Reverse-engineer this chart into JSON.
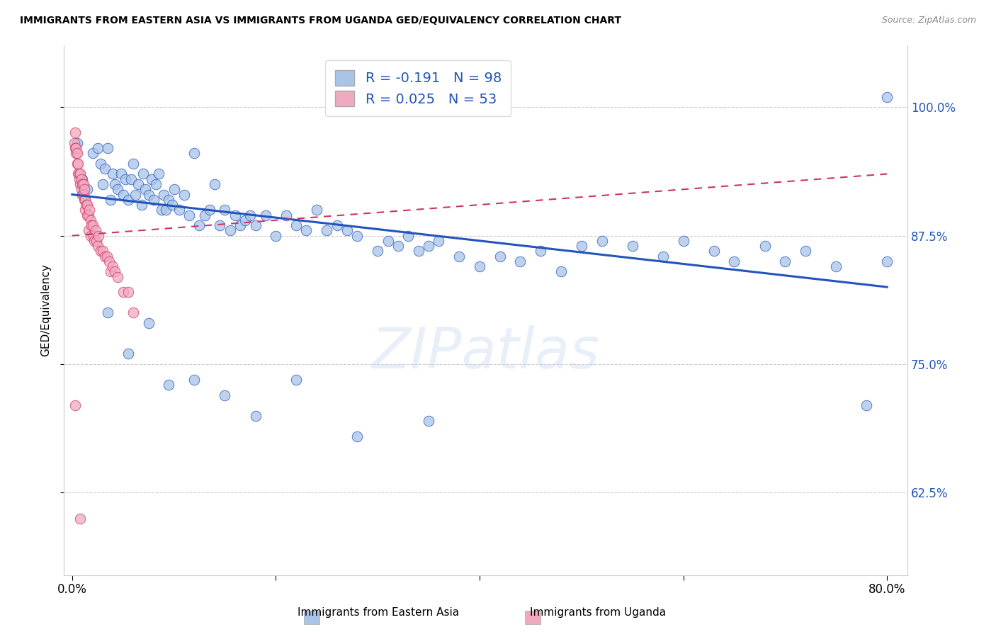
{
  "title": "IMMIGRANTS FROM EASTERN ASIA VS IMMIGRANTS FROM UGANDA GED/EQUIVALENCY CORRELATION CHART",
  "source": "Source: ZipAtlas.com",
  "xlabel_blue": "Immigrants from Eastern Asia",
  "xlabel_pink": "Immigrants from Uganda",
  "ylabel": "GED/Equivalency",
  "r_blue": -0.191,
  "n_blue": 98,
  "r_pink": 0.025,
  "n_pink": 53,
  "y_ticks": [
    0.625,
    0.75,
    0.875,
    1.0
  ],
  "y_tick_labels": [
    "62.5%",
    "75.0%",
    "87.5%",
    "100.0%"
  ],
  "xlim": [
    -0.008,
    0.82
  ],
  "ylim": [
    0.545,
    1.06
  ],
  "color_blue": "#aac4e8",
  "color_pink": "#f0aac0",
  "line_color_blue": "#2255bb",
  "line_color_pink": "#cc3366",
  "watermark": "ZIPatlas",
  "blue_scatter_x": [
    0.005,
    0.01,
    0.015,
    0.02,
    0.025,
    0.028,
    0.03,
    0.032,
    0.035,
    0.038,
    0.04,
    0.042,
    0.045,
    0.048,
    0.05,
    0.052,
    0.055,
    0.058,
    0.06,
    0.062,
    0.065,
    0.068,
    0.07,
    0.072,
    0.075,
    0.078,
    0.08,
    0.082,
    0.085,
    0.088,
    0.09,
    0.092,
    0.095,
    0.098,
    0.1,
    0.105,
    0.11,
    0.115,
    0.12,
    0.125,
    0.13,
    0.135,
    0.14,
    0.145,
    0.15,
    0.155,
    0.16,
    0.165,
    0.17,
    0.175,
    0.18,
    0.19,
    0.2,
    0.21,
    0.22,
    0.23,
    0.24,
    0.25,
    0.26,
    0.27,
    0.28,
    0.3,
    0.31,
    0.32,
    0.33,
    0.34,
    0.35,
    0.36,
    0.38,
    0.4,
    0.42,
    0.44,
    0.46,
    0.48,
    0.5,
    0.52,
    0.55,
    0.58,
    0.6,
    0.63,
    0.65,
    0.68,
    0.7,
    0.72,
    0.75,
    0.78,
    0.8,
    0.035,
    0.055,
    0.075,
    0.095,
    0.12,
    0.15,
    0.18,
    0.22,
    0.28,
    0.35,
    0.8
  ],
  "blue_scatter_y": [
    0.965,
    0.93,
    0.92,
    0.955,
    0.96,
    0.945,
    0.925,
    0.94,
    0.96,
    0.91,
    0.935,
    0.925,
    0.92,
    0.935,
    0.915,
    0.93,
    0.91,
    0.93,
    0.945,
    0.915,
    0.925,
    0.905,
    0.935,
    0.92,
    0.915,
    0.93,
    0.91,
    0.925,
    0.935,
    0.9,
    0.915,
    0.9,
    0.91,
    0.905,
    0.92,
    0.9,
    0.915,
    0.895,
    0.955,
    0.885,
    0.895,
    0.9,
    0.925,
    0.885,
    0.9,
    0.88,
    0.895,
    0.885,
    0.89,
    0.895,
    0.885,
    0.895,
    0.875,
    0.895,
    0.885,
    0.88,
    0.9,
    0.88,
    0.885,
    0.88,
    0.875,
    0.86,
    0.87,
    0.865,
    0.875,
    0.86,
    0.865,
    0.87,
    0.855,
    0.845,
    0.855,
    0.85,
    0.86,
    0.84,
    0.865,
    0.87,
    0.865,
    0.855,
    0.87,
    0.86,
    0.85,
    0.865,
    0.85,
    0.86,
    0.845,
    0.71,
    0.85,
    0.8,
    0.76,
    0.79,
    0.73,
    0.735,
    0.72,
    0.7,
    0.735,
    0.68,
    0.695,
    1.01
  ],
  "pink_scatter_x": [
    0.002,
    0.003,
    0.003,
    0.004,
    0.004,
    0.005,
    0.005,
    0.006,
    0.006,
    0.007,
    0.007,
    0.008,
    0.008,
    0.009,
    0.009,
    0.01,
    0.01,
    0.011,
    0.011,
    0.012,
    0.012,
    0.013,
    0.013,
    0.014,
    0.015,
    0.015,
    0.016,
    0.016,
    0.017,
    0.018,
    0.018,
    0.019,
    0.02,
    0.021,
    0.022,
    0.023,
    0.024,
    0.025,
    0.026,
    0.028,
    0.03,
    0.032,
    0.034,
    0.036,
    0.038,
    0.04,
    0.042,
    0.045,
    0.05,
    0.055,
    0.06,
    0.003,
    0.008
  ],
  "pink_scatter_y": [
    0.965,
    0.96,
    0.975,
    0.955,
    0.96,
    0.945,
    0.955,
    0.935,
    0.945,
    0.93,
    0.935,
    0.935,
    0.925,
    0.93,
    0.92,
    0.925,
    0.915,
    0.925,
    0.915,
    0.91,
    0.92,
    0.91,
    0.9,
    0.905,
    0.895,
    0.905,
    0.88,
    0.895,
    0.9,
    0.89,
    0.875,
    0.885,
    0.885,
    0.875,
    0.87,
    0.88,
    0.87,
    0.865,
    0.875,
    0.86,
    0.86,
    0.855,
    0.855,
    0.85,
    0.84,
    0.845,
    0.84,
    0.835,
    0.82,
    0.82,
    0.8,
    0.71,
    0.6
  ],
  "blue_line_x0": 0.0,
  "blue_line_x1": 0.8,
  "blue_line_y0": 0.915,
  "blue_line_y1": 0.825,
  "pink_line_x0": 0.0,
  "pink_line_x1": 0.8,
  "pink_line_y0": 0.875,
  "pink_line_y1": 0.935
}
